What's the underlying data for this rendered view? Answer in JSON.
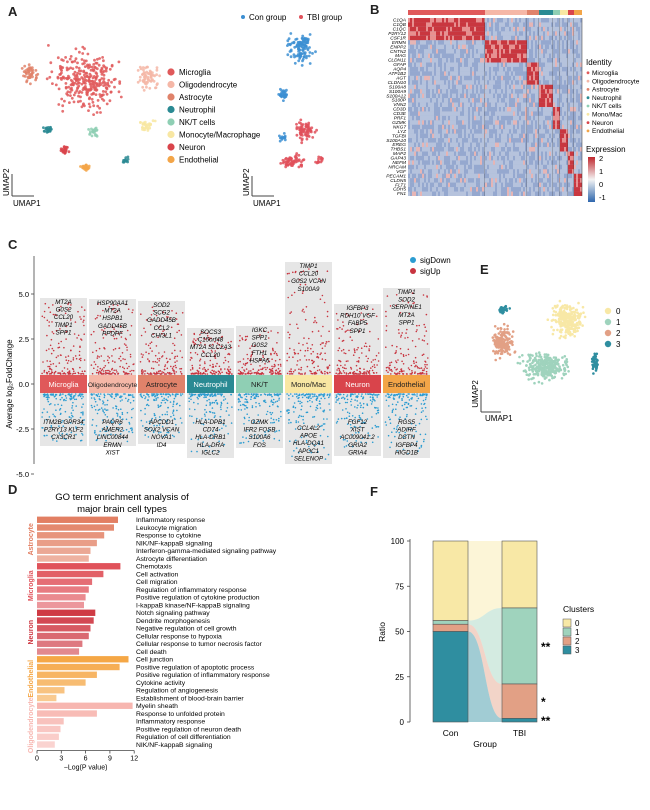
{
  "panel_labels": {
    "A": "A",
    "B": "B",
    "C": "C",
    "D": "D",
    "E": "E",
    "F": "F"
  },
  "colors": {
    "Microglia": "#e0595a",
    "Oligodendrocyte": "#f5b7a7",
    "Astrocyte": "#e0826a",
    "Neutrophil": "#2a8a93",
    "NK/T cells": "#8fcfb4",
    "Monocyte/Macrophage": "#f8e7a3",
    "Neuron": "#d9444b",
    "Endothelial": "#f3a548",
    "con": "#3c8fd2",
    "tbi": "#e0505a",
    "sigDown": "#2b9cd1",
    "sigUp": "#c8343f",
    "cluster0": "#f8e8a6",
    "cluster1": "#9fd3bd",
    "cluster2": "#e2a085",
    "cluster3": "#2f8ea0"
  },
  "panel_a": {
    "legend": [
      "Microglia",
      "Oligodendrocyte",
      "Astrocyte",
      "Neutrophil",
      "NK/T cells",
      "Monocyte/Macrophage",
      "Neuron",
      "Endothelial"
    ],
    "group_legend": [
      "Con group",
      "TBI group"
    ],
    "xlabel": "UMAP1",
    "ylabel": "UMAP2"
  },
  "panel_b": {
    "genes": [
      "C1QA",
      "C1QB",
      "C1QC",
      "P2RY12",
      "CSF1R",
      "ERMN",
      "ENPP2",
      "CNTN2",
      "MAG",
      "CLDN11",
      "GFAP",
      "AQP4",
      "ATP1B2",
      "AGT",
      "CLDN10",
      "S100A8",
      "S100A9",
      "S100A12",
      "S100P",
      "VNN2",
      "CD3D",
      "CD3E",
      "PRF1",
      "GZMK",
      "NKG7",
      "LYZ",
      "TGFBI",
      "S100A10",
      "EREG",
      "THBS1",
      "MAP2",
      "GAP43",
      "NEFM",
      "NRCAM",
      "VGF",
      "PECAM1",
      "CLDN5",
      "FLT1",
      "CDH5",
      "FN1"
    ],
    "identity_title": "Identity",
    "identity": [
      "Microglia",
      "Oligodendrocyte",
      "Astrocyte",
      "Neutrophil",
      "NK/T cells",
      "Mono/Mac",
      "Neuron",
      "Endothelial"
    ],
    "expression_title": "Expression",
    "scale_ticks": [
      "2",
      "1",
      "0",
      "-1"
    ]
  },
  "panel_c": {
    "ylabel": "Average log₂FoldChange",
    "yticks": [
      "5.0",
      "2.5",
      "0.0",
      "-2.5",
      "-5.0"
    ],
    "legend": [
      "sigDown",
      "sigUp"
    ],
    "clusters": [
      {
        "name": "Microglia",
        "up": [
          "MT2A",
          "G0S2",
          "CCL20",
          "TIMP1",
          "SPP1"
        ],
        "down": [
          "ITM2B GPR34",
          "P2RY13 KLF2",
          "CX3CR1"
        ]
      },
      {
        "name": "Oligodendrocyte",
        "up": [
          "HSP90AA1",
          "MT2A",
          "HSPB1",
          "GADD45B",
          "PPDPF"
        ],
        "down": [
          "PAQR6",
          "AMER2",
          "LINC00844",
          "ERMN",
          "XIST"
        ]
      },
      {
        "name": "Astrocyte",
        "up": [
          "SOD2",
          "SCG2",
          "GADD45B",
          "CCL2",
          "CHI3L1"
        ],
        "down": [
          "APCDD1",
          "SOX2  VCAN",
          "NOVA1",
          "ID4"
        ]
      },
      {
        "name": "Neutrophil",
        "up": [
          "SOCS3",
          "C15orf48",
          "MT2A SLC2A3",
          "CCL20"
        ],
        "down": [
          "HLA-DPB1",
          "CD74",
          "HLA-DRB1",
          "HLA-DRA",
          "IGLC2"
        ]
      },
      {
        "name": "NK/T",
        "up": [
          "IGKC",
          "SPP1",
          "G0S2",
          "FTH1",
          "HSPA6"
        ],
        "down": [
          "GZMK",
          "IFR2 FOSB",
          "S100A6",
          "FOS"
        ]
      },
      {
        "name": "Mono/Mac",
        "up": [
          "TIMP1",
          "CCL20",
          "G0S2  VCAN",
          "S100A9"
        ],
        "down": [
          "CCL4L2",
          "APOE",
          "HLA-DQA1",
          "APOC1",
          "SELENOP"
        ]
      },
      {
        "name": "Neuron",
        "up": [
          "IGFBP3",
          "RDH10  VGF",
          "FABP5",
          "SPP1"
        ],
        "down": [
          "FGF12",
          "XIST",
          "AC009041.2",
          "GRIA2",
          "GRIA4"
        ]
      },
      {
        "name": "Endothelial",
        "up": [
          "TIMP1",
          "SOD2",
          "SERPINE1",
          "MT2A",
          "SPP1"
        ],
        "down": [
          "RGS5",
          "ADIRF",
          "DSTN",
          "IGFBP4",
          "HIGD1B"
        ]
      }
    ]
  },
  "panel_d": {
    "title_line1": "GO term enrichment analysis of",
    "title_line2": "major brain cell types",
    "xlabel": "−Log(P value)",
    "xticks": [
      "0",
      "3",
      "6",
      "9",
      "12"
    ],
    "groups": [
      {
        "name": "Astrocyte",
        "color": "#e27f63",
        "terms": [
          {
            "label": "Inflammatory response",
            "value": 10.0
          },
          {
            "label": "Leukocyte migration",
            "value": 9.5
          },
          {
            "label": "Response to cytokine",
            "value": 8.3
          },
          {
            "label": "NIK/NF-kappaB signaling",
            "value": 7.4
          },
          {
            "label": "Interferon-gamma-mediated signaling pathway",
            "value": 6.6
          },
          {
            "label": "Astrocyte differentiation",
            "value": 6.4
          }
        ]
      },
      {
        "name": "Microglia",
        "color": "#e0525a",
        "terms": [
          {
            "label": "Chemotaxis",
            "value": 10.3
          },
          {
            "label": "Cell activation",
            "value": 8.2
          },
          {
            "label": "Cell migration",
            "value": 6.8
          },
          {
            "label": "Regulation of inflammatory response",
            "value": 6.4
          },
          {
            "label": "Positive regulation of cytokine production",
            "value": 6.0
          },
          {
            "label": "I-kappaB kinase/NF-kappaB signaling",
            "value": 5.8
          }
        ]
      },
      {
        "name": "Neuron",
        "color": "#cf3a44",
        "terms": [
          {
            "label": "Notch signaling pathway",
            "value": 7.2
          },
          {
            "label": "Dendrite morphogenesis",
            "value": 7.0
          },
          {
            "label": "Negative regulation of cell growth",
            "value": 6.6
          },
          {
            "label": "Cellular response to hypoxia",
            "value": 6.4
          },
          {
            "label": "Cellular response to tumor necrosis factor",
            "value": 5.6
          },
          {
            "label": "Cell death",
            "value": 5.2
          }
        ]
      },
      {
        "name": "Endothelial",
        "color": "#f5a746",
        "terms": [
          {
            "label": "Cell junction",
            "value": 11.3
          },
          {
            "label": "Positive regulation of apoptotic process",
            "value": 10.2
          },
          {
            "label": "Positive regulation of inflammatory response",
            "value": 7.4
          },
          {
            "label": "Cytokine activity",
            "value": 6.0
          },
          {
            "label": "Regulation of angiogenesis",
            "value": 3.4
          },
          {
            "label": "Establishment of blood-brain barrier",
            "value": 2.4
          }
        ]
      },
      {
        "name": "Oligodendrocyte",
        "color": "#f7b6b0",
        "terms": [
          {
            "label": "Myelin sheath",
            "value": 11.8
          },
          {
            "label": "Response to unfolded protein",
            "value": 7.4
          },
          {
            "label": "Inflammatory response",
            "value": 3.3
          },
          {
            "label": "Positive regulation of neuron death",
            "value": 2.9
          },
          {
            "label": "Regulation of cell differentiation",
            "value": 2.7
          },
          {
            "label": "NIK/NF-kappaB signaling",
            "value": 2.2
          }
        ]
      }
    ]
  },
  "panel_e": {
    "legend": [
      "0",
      "1",
      "2",
      "3"
    ],
    "xlabel": "UMAP1",
    "ylabel": "UMAP2"
  },
  "chart_data": {
    "type": "bar",
    "stacked": true,
    "categories": [
      "Con",
      "TBI"
    ],
    "xlabel": "Group",
    "ylabel": "Ratio",
    "ylim": [
      0,
      100
    ],
    "yticks": [
      "0",
      "25",
      "50",
      "75",
      "100"
    ],
    "legend_title": "Clusters",
    "series": [
      {
        "name": "0",
        "values": [
          44,
          37
        ]
      },
      {
        "name": "1",
        "values": [
          2,
          42
        ]
      },
      {
        "name": "2",
        "values": [
          4,
          19
        ]
      },
      {
        "name": "3",
        "values": [
          50,
          2
        ]
      }
    ],
    "significance": [
      {
        "cluster": "1",
        "label": "**"
      },
      {
        "cluster": "2",
        "label": "*"
      },
      {
        "cluster": "3",
        "label": "**"
      }
    ]
  }
}
